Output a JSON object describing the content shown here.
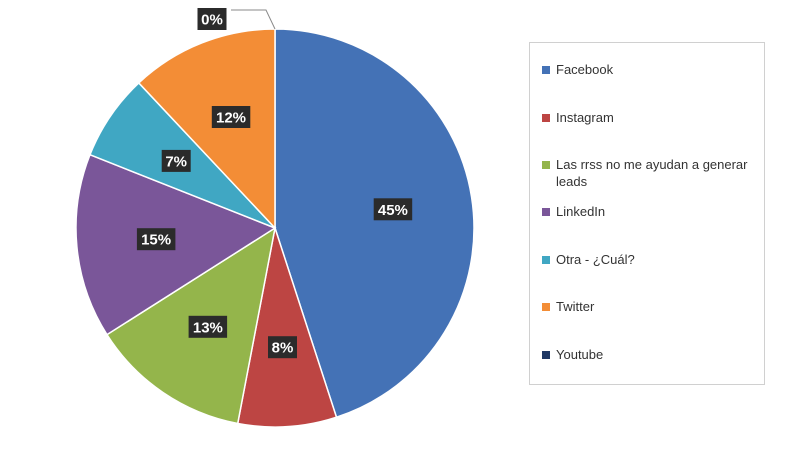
{
  "chart_data": {
    "type": "pie",
    "title": "",
    "slices": [
      {
        "label": "Facebook",
        "value": 45,
        "display": "45%",
        "color": "#4472b6"
      },
      {
        "label": "Instagram",
        "value": 8,
        "display": "8%",
        "color": "#bd4543"
      },
      {
        "label": "Las rrss no me ayudan a generar leads",
        "value": 13,
        "display": "13%",
        "color": "#94b54b"
      },
      {
        "label": "LinkedIn",
        "value": 15,
        "display": "15%",
        "color": "#7a5699"
      },
      {
        "label": "Otra - ¿Cuál?",
        "value": 7,
        "display": "7%",
        "color": "#40a7c3"
      },
      {
        "label": "Twitter",
        "value": 12,
        "display": "12%",
        "color": "#f38d36"
      },
      {
        "label": "Youtube",
        "value": 0,
        "display": "0%",
        "color": "#1f3864"
      }
    ],
    "legend_placement": "right"
  }
}
